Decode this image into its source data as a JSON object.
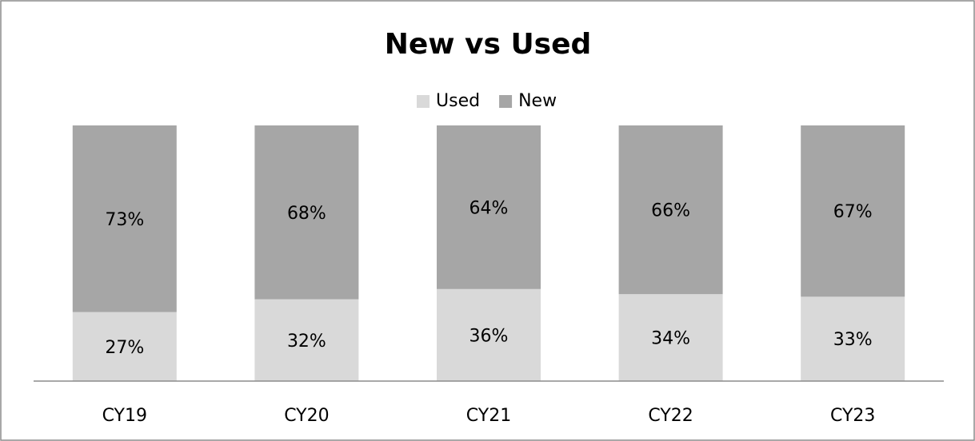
{
  "chart_data": {
    "type": "stacked_bar",
    "title": "New vs Used",
    "categories": [
      "CY19",
      "CY20",
      "CY21",
      "CY22",
      "CY23"
    ],
    "series": [
      {
        "name": "Used",
        "color": "#d9d9d9",
        "values": [
          27,
          32,
          36,
          34,
          33
        ],
        "value_labels": [
          "27%",
          "32%",
          "36%",
          "34%",
          "33%"
        ]
      },
      {
        "name": "New",
        "color": "#a6a6a6",
        "values": [
          73,
          68,
          64,
          66,
          67
        ],
        "value_labels": [
          "73%",
          "68%",
          "64%",
          "66%",
          "67%"
        ]
      }
    ],
    "ylim": [
      0,
      100
    ],
    "legend": "top"
  }
}
